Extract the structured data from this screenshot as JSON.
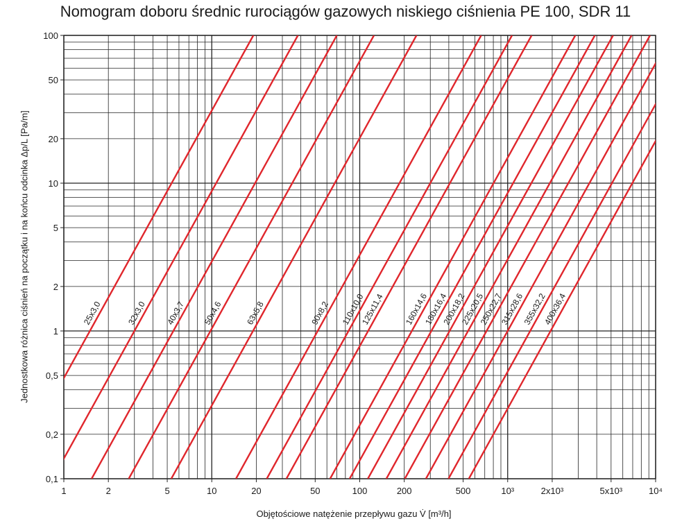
{
  "chart_data": {
    "type": "line",
    "title": "Nomogram doboru średnic rurociągów gazowych niskiego ciśnienia PE 100, SDR 11",
    "xlabel": "Objętościowe natężenie przepływu gazu V̇ [m³/h]",
    "ylabel": "Jednostkowa różnica ciśnień na początku i na końcu odcinka Δp/L [Pa/m]",
    "x_scale": "log",
    "y_scale": "log",
    "xlim": [
      1,
      10000
    ],
    "ylim": [
      0.1,
      100
    ],
    "grid": true,
    "x_ticks": [
      {
        "value": 1,
        "label": "1"
      },
      {
        "value": 2,
        "label": "2"
      },
      {
        "value": 5,
        "label": "5"
      },
      {
        "value": 10,
        "label": "10"
      },
      {
        "value": 20,
        "label": "20"
      },
      {
        "value": 50,
        "label": "50"
      },
      {
        "value": 100,
        "label": "100"
      },
      {
        "value": 200,
        "label": "200"
      },
      {
        "value": 500,
        "label": "500"
      },
      {
        "value": 1000,
        "label": "10³"
      },
      {
        "value": 2000,
        "label": "2x10³"
      },
      {
        "value": 5000,
        "label": "5x10³"
      },
      {
        "value": 10000,
        "label": "10⁴"
      }
    ],
    "y_ticks": [
      {
        "value": 0.1,
        "label": "0,1"
      },
      {
        "value": 0.2,
        "label": "0,2"
      },
      {
        "value": 0.5,
        "label": "0,5"
      },
      {
        "value": 1,
        "label": "1"
      },
      {
        "value": 2,
        "label": "2"
      },
      {
        "value": 5,
        "label": "5"
      },
      {
        "value": 10,
        "label": "10"
      },
      {
        "value": 20,
        "label": "20"
      },
      {
        "value": 50,
        "label": "50"
      },
      {
        "value": 100,
        "label": "100"
      }
    ],
    "series_color": "#e0262c",
    "series": [
      {
        "name": "25x3,0",
        "x_at_dp_1": 1.5
      },
      {
        "name": "32x3,0",
        "x_at_dp_1": 3.0
      },
      {
        "name": "40x3,7",
        "x_at_dp_1": 5.5
      },
      {
        "name": "50x4,6",
        "x_at_dp_1": 9.8
      },
      {
        "name": "63x5,8",
        "x_at_dp_1": 19
      },
      {
        "name": "90x8,2",
        "x_at_dp_1": 52
      },
      {
        "name": "110x10,0",
        "x_at_dp_1": 84
      },
      {
        "name": "125x11,4",
        "x_at_dp_1": 114
      },
      {
        "name": "160x14,6",
        "x_at_dp_1": 225
      },
      {
        "name": "180x16,4",
        "x_at_dp_1": 305
      },
      {
        "name": "200x18,2",
        "x_at_dp_1": 405
      },
      {
        "name": "225x20,5",
        "x_at_dp_1": 540
      },
      {
        "name": "250x22,7",
        "x_at_dp_1": 720
      },
      {
        "name": "315x28,6",
        "x_at_dp_1": 1000
      },
      {
        "name": "355x32,2",
        "x_at_dp_1": 1420
      },
      {
        "name": "400x36,4",
        "x_at_dp_1": 1950
      }
    ],
    "slope_log_dp_per_log_v": 1.81
  }
}
